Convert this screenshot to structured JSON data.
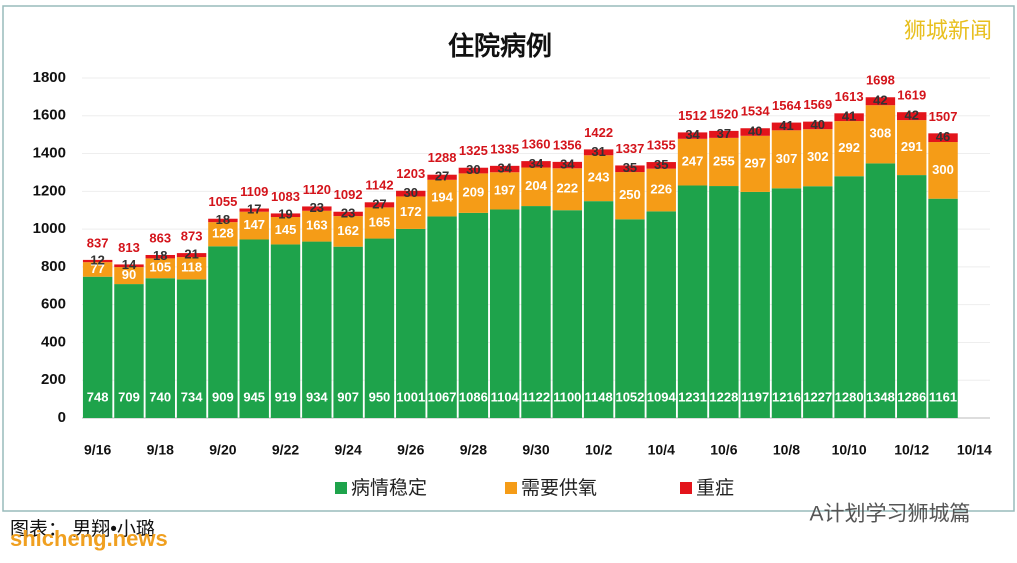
{
  "chart_data": {
    "type": "stacked_bar",
    "title": "住院病例",
    "categories": [
      "9/16",
      null,
      "9/18",
      null,
      "9/20",
      null,
      "9/22",
      null,
      "9/24",
      null,
      "9/26",
      null,
      "9/28",
      null,
      "9/30",
      null,
      "10/2",
      null,
      "10/4",
      null,
      "10/6",
      null,
      "10/8",
      null,
      "10/10",
      null,
      "10/12",
      null,
      "10/14"
    ],
    "series": [
      {
        "name": "病情稳定",
        "color": "#1ea34b",
        "values": [
          748,
          709,
          740,
          734,
          909,
          945,
          919,
          934,
          907,
          950,
          1001,
          1067,
          1086,
          1104,
          1122,
          1100,
          1148,
          1052,
          1094,
          1231,
          1228,
          1197,
          1216,
          1227,
          1280,
          1348,
          1286,
          1161,
          null
        ]
      },
      {
        "name": "需要供氧",
        "color": "#f59c17",
        "values": [
          77,
          90,
          105,
          118,
          128,
          147,
          145,
          163,
          162,
          165,
          172,
          194,
          209,
          197,
          204,
          222,
          243,
          250,
          226,
          247,
          255,
          297,
          307,
          302,
          292,
          308,
          291,
          300,
          null
        ]
      },
      {
        "name": "重症",
        "color": "#e3141b",
        "values": [
          12,
          14,
          18,
          21,
          18,
          17,
          19,
          23,
          23,
          27,
          30,
          27,
          30,
          34,
          34,
          34,
          31,
          35,
          35,
          34,
          37,
          40,
          41,
          40,
          41,
          42,
          42,
          46,
          null
        ]
      }
    ],
    "totals": [
      837,
      813,
      863,
      873,
      1055,
      1109,
      1083,
      1120,
      1092,
      1142,
      1203,
      1288,
      1325,
      1335,
      1360,
      1356,
      1422,
      1337,
      1355,
      1512,
      1520,
      1534,
      1564,
      1569,
      1613,
      1698,
      1619,
      1507,
      null
    ],
    "ylim": [
      0,
      1800
    ],
    "yticks": [
      0,
      200,
      400,
      600,
      800,
      1000,
      1200,
      1400,
      1600,
      1800
    ],
    "grid": true,
    "legend": "bottom"
  },
  "watermark": "狮城新闻",
  "credit": "图表： 男翔•小璐",
  "site": "shicheng.news",
  "account": "A计划学习狮城篇"
}
